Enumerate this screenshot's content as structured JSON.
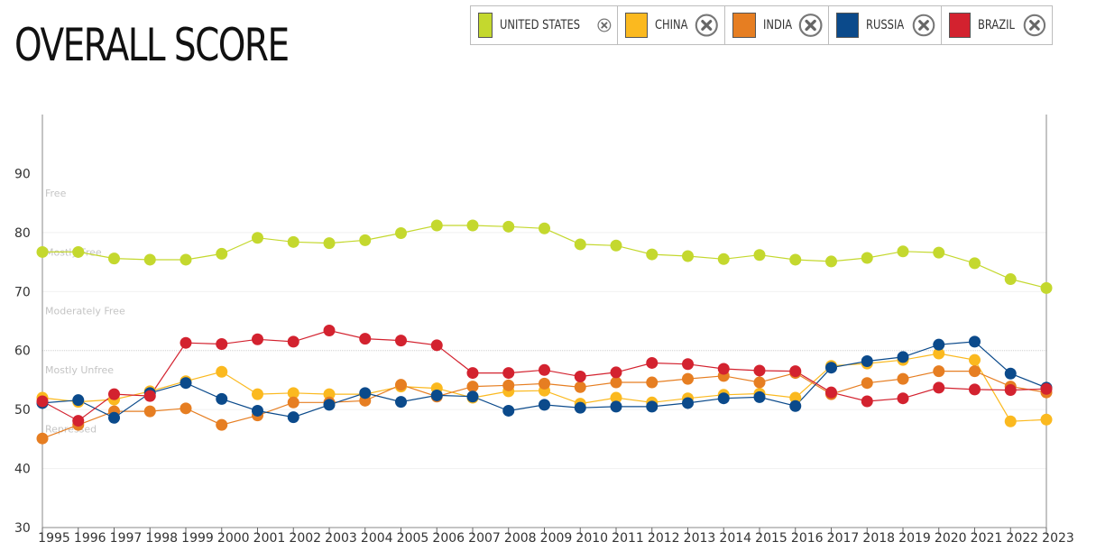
{
  "title": "OVERALL SCORE",
  "legend": [
    {
      "label": "UNITED STATES",
      "color": "#c4d82e",
      "icon": "close-icon"
    },
    {
      "label": "CHINA",
      "color": "#fbb91f",
      "icon": "close-icon"
    },
    {
      "label": "INDIA",
      "color": "#e67e22",
      "icon": "close-icon"
    },
    {
      "label": "RUSSIA",
      "color": "#0b4a8b",
      "icon": "close-icon"
    },
    {
      "label": "BRAZIL",
      "color": "#d3222f",
      "icon": "close-icon"
    }
  ],
  "chart_data": {
    "type": "line",
    "title": "OVERALL SCORE",
    "xlabel": "",
    "ylabel": "",
    "ylim": [
      30,
      100
    ],
    "yticks": [
      30,
      40,
      50,
      60,
      70,
      80,
      90
    ],
    "categories": [
      "1995",
      "1996",
      "1997",
      "1998",
      "1999",
      "2000",
      "2001",
      "2002",
      "2003",
      "2004",
      "2005",
      "2006",
      "2007",
      "2008",
      "2009",
      "2010",
      "2011",
      "2012",
      "2013",
      "2014",
      "2015",
      "2016",
      "2017",
      "2018",
      "2019",
      "2020",
      "2021",
      "2022",
      "2023"
    ],
    "bands": [
      {
        "label": "Free",
        "value": 80
      },
      {
        "label": "Mostly Free",
        "value": 70
      },
      {
        "label": "Moderately Free",
        "value": 60
      },
      {
        "label": "Mostly Unfree",
        "value": 50
      },
      {
        "label": "Repressed",
        "value": 40
      }
    ],
    "legend_position": "top-right",
    "grid": true,
    "series": [
      {
        "name": "UNITED STATES",
        "color": "#c4d82e",
        "values": [
          76.7,
          76.7,
          75.6,
          75.4,
          75.4,
          76.4,
          79.1,
          78.4,
          78.2,
          78.7,
          79.9,
          81.2,
          81.2,
          81.0,
          80.7,
          78.0,
          77.8,
          76.3,
          76.0,
          75.5,
          76.2,
          75.4,
          75.1,
          75.7,
          76.8,
          76.6,
          74.8,
          72.1,
          70.6
        ]
      },
      {
        "name": "CHINA",
        "color": "#fbb91f",
        "values": [
          52.0,
          51.3,
          51.7,
          53.1,
          54.8,
          56.4,
          52.6,
          52.8,
          52.6,
          52.6,
          53.9,
          53.6,
          52.0,
          53.1,
          53.2,
          51.0,
          52.0,
          51.2,
          51.9,
          52.5,
          52.7,
          52.0,
          57.4,
          57.8,
          58.4,
          59.5,
          58.4,
          48.0,
          48.3
        ]
      },
      {
        "name": "INDIA",
        "color": "#e67e22",
        "values": [
          45.1,
          47.4,
          49.7,
          49.7,
          50.2,
          47.4,
          49.0,
          51.2,
          51.2,
          51.5,
          54.2,
          52.2,
          53.9,
          54.1,
          54.4,
          53.8,
          54.6,
          54.6,
          55.2,
          55.7,
          54.6,
          56.2,
          52.6,
          54.5,
          55.2,
          56.5,
          56.5,
          53.9,
          52.9
        ]
      },
      {
        "name": "RUSSIA",
        "color": "#0b4a8b",
        "values": [
          51.1,
          51.6,
          48.6,
          52.8,
          54.5,
          51.8,
          49.8,
          48.7,
          50.8,
          52.8,
          51.3,
          52.4,
          52.2,
          49.8,
          50.8,
          50.3,
          50.5,
          50.5,
          51.1,
          51.9,
          52.1,
          50.6,
          57.1,
          58.2,
          58.9,
          61.0,
          61.5,
          56.1,
          53.7
        ]
      },
      {
        "name": "BRAZIL",
        "color": "#d3222f",
        "values": [
          51.4,
          48.1,
          52.6,
          52.3,
          61.3,
          61.1,
          61.9,
          61.5,
          63.4,
          62.0,
          61.7,
          60.9,
          56.2,
          56.2,
          56.7,
          55.6,
          56.3,
          57.9,
          57.7,
          56.9,
          56.6,
          56.5,
          52.9,
          51.4,
          51.9,
          53.7,
          53.4,
          53.3,
          53.5
        ]
      }
    ]
  }
}
